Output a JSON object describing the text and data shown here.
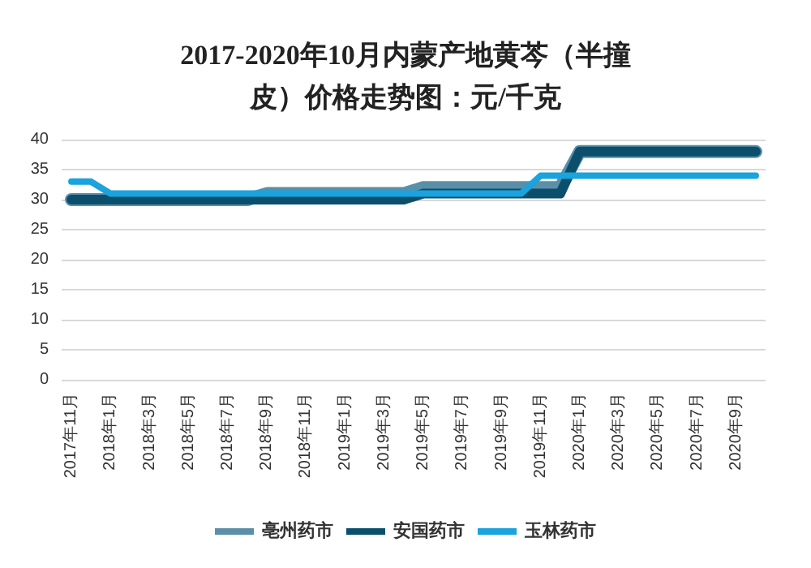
{
  "chart_data": {
    "type": "line",
    "title": "2017-2020年10月内蒙产地黄芩（半撞皮）价格走势图：元/千克",
    "categories": [
      "2017年11月",
      null,
      "2018年1月",
      null,
      "2018年3月",
      null,
      "2018年5月",
      null,
      "2018年7月",
      null,
      "2018年9月",
      null,
      "2018年11月",
      null,
      "2019年1月",
      null,
      "2019年3月",
      null,
      "2019年5月",
      null,
      "2019年7月",
      null,
      "2019年9月",
      null,
      "2019年11月",
      null,
      "2020年1月",
      null,
      "2020年3月",
      null,
      "2020年5月",
      null,
      "2020年7月",
      null,
      "2020年9月",
      null
    ],
    "series": [
      {
        "name": "亳州药市",
        "color": "#5b8fa8",
        "values": [
          30,
          30,
          30,
          30,
          30,
          30,
          30,
          30,
          30,
          30,
          31,
          31,
          31,
          31,
          31,
          31,
          31,
          31,
          32,
          32,
          32,
          32,
          32,
          32,
          32,
          32,
          38,
          38,
          38,
          38,
          38,
          38,
          38,
          38,
          38,
          38
        ]
      },
      {
        "name": "安国药市",
        "color": "#0b4f6c",
        "values": [
          30,
          30,
          30,
          30,
          30,
          30,
          30,
          30,
          30,
          30,
          30,
          30,
          30,
          30,
          30,
          30,
          30,
          30,
          31,
          31,
          31,
          31,
          31,
          31,
          31,
          31,
          38,
          38,
          38,
          38,
          38,
          38,
          38,
          38,
          38,
          38
        ]
      },
      {
        "name": "玉林药市",
        "color": "#1aa3dc",
        "values": [
          33,
          33,
          31,
          31,
          31,
          31,
          31,
          31,
          31,
          31,
          31,
          31,
          31,
          31,
          31,
          31,
          31,
          31,
          31,
          31,
          31,
          31,
          31,
          31,
          34,
          34,
          34,
          34,
          34,
          34,
          34,
          34,
          34,
          34,
          34,
          34
        ]
      }
    ],
    "ylim": [
      0,
      40
    ],
    "yticks": [
      0,
      5,
      10,
      15,
      20,
      25,
      30,
      35,
      40
    ],
    "grid": "y",
    "legend": "bottom",
    "marker": "none",
    "line_style": "solid"
  }
}
